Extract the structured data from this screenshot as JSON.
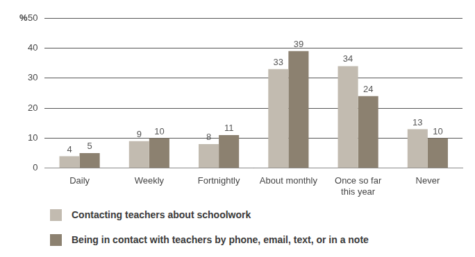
{
  "chart_data": {
    "type": "bar",
    "ylabel": "%",
    "categories": [
      "Daily",
      "Weekly",
      "Fortnightly",
      "About monthly",
      "Once so far this year",
      "Never"
    ],
    "series": [
      {
        "name": "Contacting teachers about schoolwork",
        "color": "#c2bbb0",
        "values": [
          4,
          9,
          8,
          33,
          34,
          13
        ]
      },
      {
        "name": "Being in contact with teachers by phone, email, text, or in a note",
        "color": "#8c8170",
        "values": [
          5,
          10,
          11,
          39,
          24,
          10
        ]
      }
    ],
    "ylim": [
      0,
      50
    ],
    "yticks": [
      0,
      10,
      20,
      30,
      40,
      50
    ],
    "grid": true,
    "data_labels": true,
    "legend": "bottom"
  }
}
